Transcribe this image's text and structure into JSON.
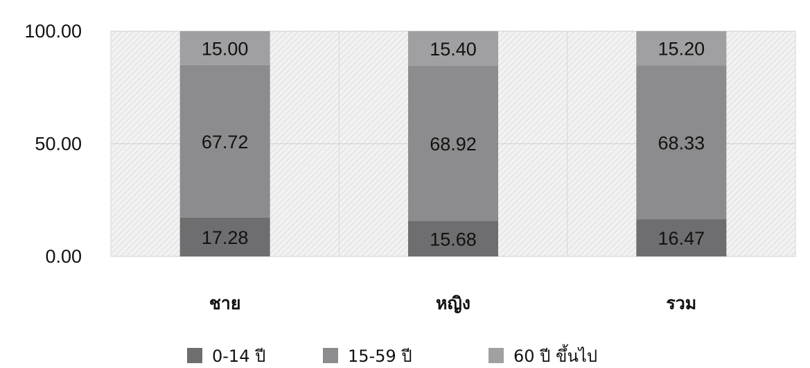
{
  "chart_data": {
    "type": "bar",
    "stacked": true,
    "categories": [
      "ชาย",
      "หญิง",
      "รวม"
    ],
    "series": [
      {
        "name": "0-14 ปี",
        "values": [
          17.28,
          15.68,
          16.47
        ],
        "color": "#6e6e70"
      },
      {
        "name": "15-59 ปี",
        "values": [
          67.72,
          68.92,
          68.33
        ],
        "color": "#8c8c8e"
      },
      {
        "name": "60 ปี ขึ้นไป",
        "values": [
          15.0,
          15.4,
          15.2
        ],
        "color": "#a0a0a2"
      }
    ],
    "yticks": [
      "0.00",
      "50.00",
      "100.00"
    ],
    "ylim": [
      0,
      100
    ],
    "grid": true,
    "legend_position": "bottom",
    "plot_background": "hatched-light-gray"
  }
}
